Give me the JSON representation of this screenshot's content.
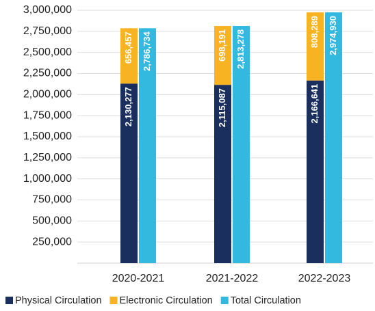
{
  "chart_data": {
    "type": "bar",
    "categories": [
      "2020-2021",
      "2021-2022",
      "2022-2023"
    ],
    "series": [
      {
        "name": "Physical Circulation",
        "color": "#1b2f5e",
        "stack": 0,
        "values": [
          2130277,
          2115087,
          2166641
        ],
        "value_labels": [
          "2,130,277",
          "2,115,087",
          "2,166,641"
        ]
      },
      {
        "name": "Electronic Circulation",
        "color": "#f7b321",
        "stack": 0,
        "values": [
          656457,
          698191,
          808289
        ],
        "value_labels": [
          "656,457",
          "698,191",
          "808,289"
        ]
      },
      {
        "name": "Total Circulation",
        "color": "#33b9e0",
        "stack": 1,
        "values": [
          2786734,
          2813278,
          2974930
        ],
        "value_labels": [
          "2,786,734",
          "2,813,278",
          "2,974,930"
        ]
      }
    ],
    "ylim": [
      0,
      3000000
    ],
    "yticks": [
      {
        "value": 250000,
        "label": "250,000"
      },
      {
        "value": 500000,
        "label": "500,000"
      },
      {
        "value": 750000,
        "label": "750,000"
      },
      {
        "value": 1000000,
        "label": "1,000,000"
      },
      {
        "value": 1250000,
        "label": "1,250,000"
      },
      {
        "value": 1500000,
        "label": "1,500,000"
      },
      {
        "value": 1750000,
        "label": "1,750,000"
      },
      {
        "value": 2000000,
        "label": "2,000,000"
      },
      {
        "value": 2250000,
        "label": "2,250,000"
      },
      {
        "value": 2500000,
        "label": "2,500,000"
      },
      {
        "value": 2750000,
        "label": "2,750,000"
      },
      {
        "value": 3000000,
        "label": "3,000,000"
      }
    ],
    "grid": true,
    "legend": "bottom"
  }
}
